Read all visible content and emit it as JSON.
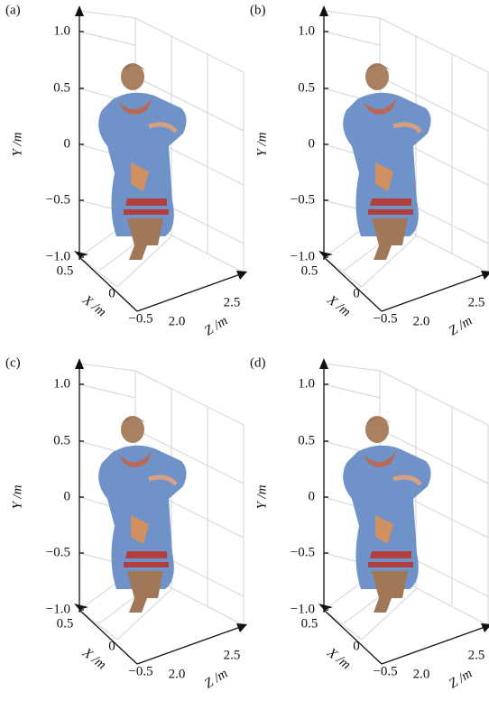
{
  "panels": [
    {
      "label": "(a)",
      "y_axis_label": "Y /m",
      "x_axis_label": "X /m",
      "z_axis_label": "Z /m",
      "yticks": [
        "1.0",
        "0.5",
        "0",
        "−0.5",
        "−1.0"
      ],
      "xticks": [
        "0.5",
        "0",
        "−0.5"
      ],
      "zticks": [
        "2.0",
        "2.5"
      ]
    },
    {
      "label": "(b)",
      "y_axis_label": "Y /m",
      "x_axis_label": "X /m",
      "z_axis_label": "Z /m",
      "yticks": [
        "1.0",
        "0.5",
        "0",
        "−0.5",
        "−1.0"
      ],
      "xticks": [
        "0.5",
        "0",
        "−0.5"
      ],
      "zticks": [
        "2.0",
        "2.5"
      ]
    },
    {
      "label": "(c)",
      "y_axis_label": "Y /m",
      "x_axis_label": "X /m",
      "z_axis_label": "Z /m",
      "yticks": [
        "1.0",
        "0.5",
        "0",
        "−0.5",
        "−1.0"
      ],
      "xticks": [
        "0.5",
        "0",
        "−0.5"
      ],
      "zticks": [
        "2.0",
        "2.5"
      ]
    },
    {
      "label": "(d)",
      "y_axis_label": "Y /m",
      "x_axis_label": "X /m",
      "z_axis_label": "Z /m",
      "yticks": [
        "1.0",
        "0.5",
        "0",
        "−0.5",
        "−1.0"
      ],
      "xticks": [
        "0.5",
        "0",
        "−0.5"
      ],
      "zticks": [
        "2.0",
        "2.5"
      ]
    }
  ]
}
